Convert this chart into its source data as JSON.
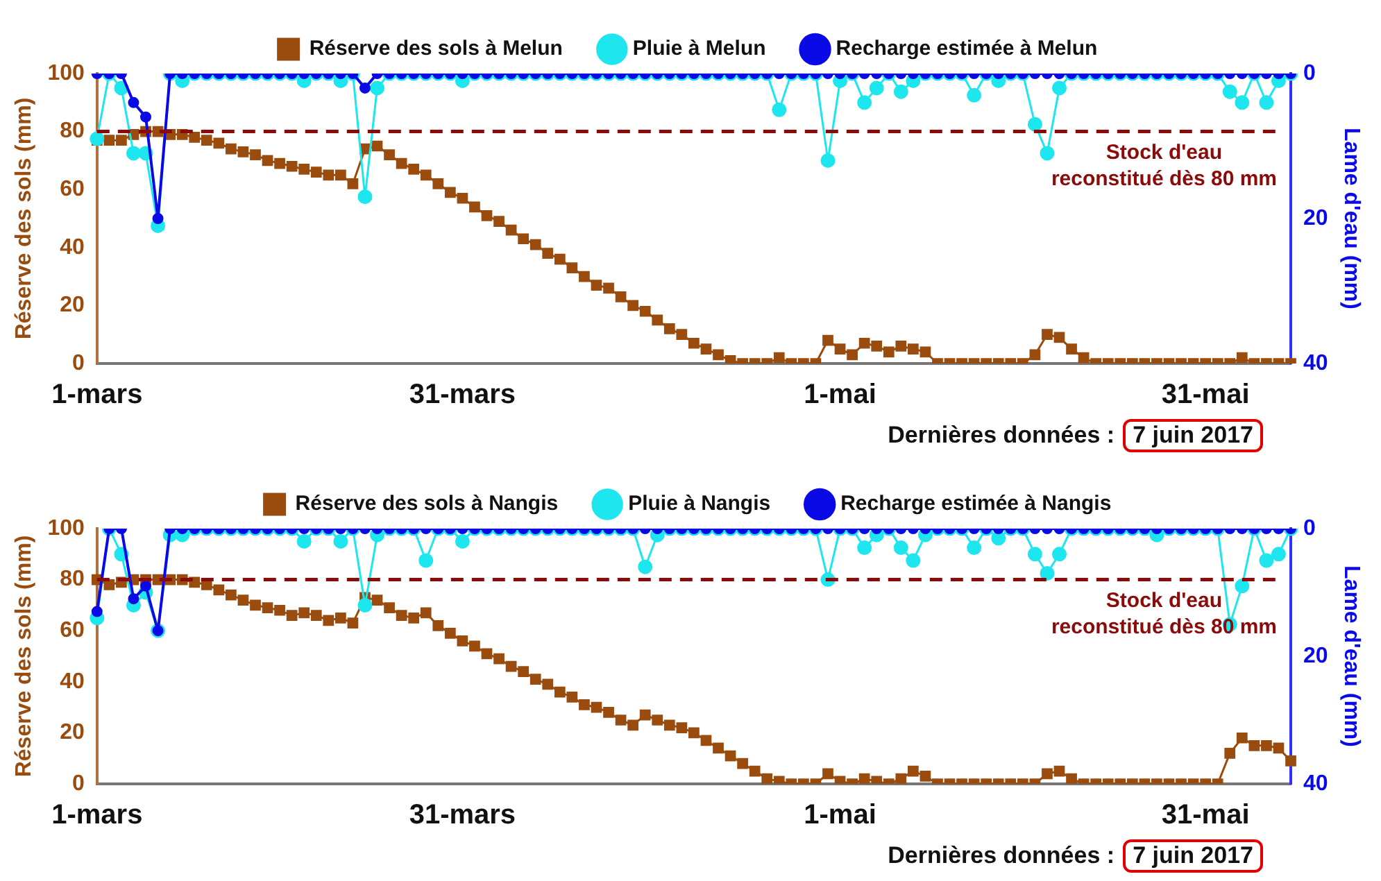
{
  "chart_data": [
    {
      "type": "line",
      "categories": [
        "1-mars",
        null,
        null,
        null,
        null,
        null,
        null,
        null,
        null,
        null,
        null,
        null,
        null,
        null,
        null,
        null,
        null,
        null,
        null,
        null,
        null,
        null,
        null,
        null,
        null,
        null,
        null,
        null,
        null,
        null,
        "31-mars",
        null,
        null,
        null,
        null,
        null,
        null,
        null,
        null,
        null,
        null,
        null,
        null,
        null,
        null,
        null,
        null,
        null,
        null,
        null,
        null,
        null,
        null,
        null,
        null,
        null,
        null,
        null,
        null,
        null,
        null,
        "1-mai",
        null,
        null,
        null,
        null,
        null,
        null,
        null,
        null,
        null,
        null,
        null,
        null,
        null,
        null,
        null,
        null,
        null,
        null,
        null,
        null,
        null,
        null,
        null,
        null,
        null,
        null,
        null,
        null,
        null,
        "31-mai",
        null,
        null,
        null,
        null,
        null,
        null,
        null
      ],
      "ylabel": "Réserve des sols (mm)",
      "y2label": "Lame d'eau (mm)",
      "ylim": [
        0,
        100
      ],
      "yticks": [
        0,
        20,
        40,
        60,
        80,
        100
      ],
      "y2lim": [
        40,
        0
      ],
      "y2ticks": [
        0,
        20,
        40
      ],
      "legend": "top",
      "grid": false,
      "series": [
        {
          "name": "Réserve des sols à Melun",
          "color": "#9a4c0e",
          "marker": "square",
          "values": [
            77,
            77,
            77,
            79,
            80,
            80,
            79,
            79,
            78,
            77,
            76,
            74,
            73,
            72,
            70,
            69,
            68,
            67,
            66,
            65,
            65,
            62,
            74,
            75,
            72,
            69,
            67,
            65,
            62,
            59,
            57,
            54,
            51,
            49,
            46,
            43,
            41,
            38,
            36,
            33,
            30,
            27,
            26,
            23,
            20,
            18,
            15,
            12,
            10,
            7,
            5,
            3,
            1,
            0,
            0,
            0,
            2,
            0,
            0,
            0,
            8,
            5,
            3,
            7,
            6,
            4,
            6,
            5,
            4,
            0,
            0,
            0,
            0,
            0,
            0,
            0,
            0,
            3,
            10,
            9,
            5,
            2,
            0,
            0,
            0,
            0,
            0,
            0,
            0,
            0,
            0,
            0,
            0,
            0,
            2,
            0,
            0,
            0,
            0
          ]
        },
        {
          "name": "Pluie à Melun",
          "color": "#1ee6ee",
          "marker": "circle",
          "axis": "y2",
          "values": [
            9,
            0,
            2,
            11,
            11,
            21,
            0,
            1,
            0,
            0,
            0,
            0,
            0,
            0,
            0,
            0,
            0,
            1,
            0,
            0,
            1,
            0,
            17,
            2,
            0,
            0,
            0,
            0,
            0,
            0,
            1,
            0,
            0,
            0,
            0,
            0,
            0,
            0,
            0,
            0,
            0,
            0,
            0,
            0,
            0,
            0,
            0,
            0,
            0,
            0,
            0,
            0,
            0,
            0,
            0,
            0,
            5,
            0,
            0,
            0,
            12,
            1,
            0,
            4,
            2,
            0,
            2.5,
            1,
            0,
            0,
            0,
            0,
            3,
            0,
            1,
            0,
            0,
            7,
            11,
            2,
            0,
            0,
            0,
            0,
            0,
            0,
            0,
            0,
            0,
            0,
            0,
            0,
            0,
            2.5,
            4,
            0,
            4,
            1,
            0
          ]
        },
        {
          "name": "Recharge estimée à Melun",
          "color": "#0a0ae6",
          "marker": "circle",
          "axis": "y2",
          "values": [
            0,
            0,
            0,
            4,
            6,
            20,
            0,
            0,
            0,
            0,
            0,
            0,
            0,
            0,
            0,
            0,
            0,
            0,
            0,
            0,
            0,
            0,
            2,
            0,
            0,
            0,
            0,
            0,
            0,
            0,
            0,
            0,
            0,
            0,
            0,
            0,
            0,
            0,
            0,
            0,
            0,
            0,
            0,
            0,
            0,
            0,
            0,
            0,
            0,
            0,
            0,
            0,
            0,
            0,
            0,
            0,
            0,
            0,
            0,
            0,
            0,
            0,
            0,
            0,
            0,
            0,
            0,
            0,
            0,
            0,
            0,
            0,
            0,
            0,
            0,
            0,
            0,
            0,
            0,
            0,
            0,
            0,
            0,
            0,
            0,
            0,
            0,
            0,
            0,
            0,
            0,
            0,
            0,
            0,
            0,
            0,
            0,
            0,
            0
          ]
        }
      ],
      "ref_lines": [
        {
          "axis": "y",
          "value": 80,
          "label": "Stock d'eau\nreconstitué dès 80 mm",
          "color": "#8b0a0a",
          "line_style": "dashed"
        }
      ],
      "annotations": [
        "Dernières données :",
        "7 juin 2017"
      ]
    },
    {
      "type": "line",
      "categories": [
        "1-mars",
        null,
        null,
        null,
        null,
        null,
        null,
        null,
        null,
        null,
        null,
        null,
        null,
        null,
        null,
        null,
        null,
        null,
        null,
        null,
        null,
        null,
        null,
        null,
        null,
        null,
        null,
        null,
        null,
        null,
        "31-mars",
        null,
        null,
        null,
        null,
        null,
        null,
        null,
        null,
        null,
        null,
        null,
        null,
        null,
        null,
        null,
        null,
        null,
        null,
        null,
        null,
        null,
        null,
        null,
        null,
        null,
        null,
        null,
        null,
        null,
        null,
        "1-mai",
        null,
        null,
        null,
        null,
        null,
        null,
        null,
        null,
        null,
        null,
        null,
        null,
        null,
        null,
        null,
        null,
        null,
        null,
        null,
        null,
        null,
        null,
        null,
        null,
        null,
        null,
        null,
        null,
        null,
        "31-mai",
        null,
        null,
        null,
        null,
        null,
        null,
        null
      ],
      "ylabel": "Réserve des sols (mm)",
      "y2label": "Lame d'eau (mm)",
      "ylim": [
        0,
        100
      ],
      "yticks": [
        0,
        20,
        40,
        60,
        80,
        100
      ],
      "y2lim": [
        40,
        0
      ],
      "y2ticks": [
        0,
        20,
        40
      ],
      "legend": "top",
      "grid": false,
      "series": [
        {
          "name": "Réserve des sols à Nangis",
          "color": "#9a4c0e",
          "marker": "square",
          "values": [
            80,
            78,
            79,
            80,
            80,
            80,
            80,
            80,
            79,
            78,
            76,
            74,
            72,
            70,
            69,
            68,
            66,
            67,
            66,
            64,
            65,
            63,
            73,
            72,
            69,
            66,
            65,
            67,
            62,
            59,
            56,
            54,
            51,
            49,
            46,
            44,
            41,
            39,
            36,
            34,
            31,
            30,
            28,
            25,
            23,
            27,
            25,
            23,
            22,
            20,
            17,
            14,
            11,
            8,
            5,
            2,
            1,
            0,
            0,
            0,
            4,
            1,
            0,
            2,
            1,
            0,
            2,
            5,
            3,
            0,
            0,
            0,
            0,
            0,
            0,
            0,
            0,
            0,
            4,
            5,
            2,
            0,
            0,
            0,
            0,
            0,
            0,
            0,
            0,
            0,
            0,
            0,
            0,
            12,
            18,
            15,
            15,
            14,
            9
          ]
        },
        {
          "name": "Pluie à Nangis",
          "color": "#1ee6ee",
          "marker": "circle",
          "axis": "y2",
          "values": [
            14,
            0,
            4,
            12,
            10,
            16,
            1,
            1,
            0,
            0,
            0,
            0,
            0,
            0,
            0,
            0,
            0,
            2,
            0,
            0,
            2,
            0,
            12,
            1,
            0,
            0,
            0,
            5,
            0,
            0,
            2,
            0,
            0,
            0,
            0,
            0,
            0,
            0,
            0,
            0,
            0,
            0,
            0,
            0,
            0,
            6,
            1,
            0,
            0,
            0,
            0,
            0,
            0,
            0,
            0,
            0,
            0,
            0,
            0,
            0,
            8,
            0,
            0,
            3,
            1,
            0,
            3,
            5,
            1,
            0,
            0,
            0,
            3,
            0,
            1.5,
            0,
            0,
            4,
            7,
            4,
            0,
            0,
            0,
            0,
            0,
            0,
            0,
            1,
            0,
            0,
            0,
            0,
            0,
            15,
            9,
            0,
            5,
            4,
            0
          ]
        },
        {
          "name": "Recharge estimée à Nangis",
          "color": "#0a0ae6",
          "marker": "circle",
          "axis": "y2",
          "values": [
            13,
            0,
            0,
            11,
            9,
            16,
            0,
            0,
            0,
            0,
            0,
            0,
            0,
            0,
            0,
            0,
            0,
            0,
            0,
            0,
            0,
            0,
            0,
            0,
            0,
            0,
            0,
            0,
            0,
            0,
            0,
            0,
            0,
            0,
            0,
            0,
            0,
            0,
            0,
            0,
            0,
            0,
            0,
            0,
            0,
            0,
            0,
            0,
            0,
            0,
            0,
            0,
            0,
            0,
            0,
            0,
            0,
            0,
            0,
            0,
            0,
            0,
            0,
            0,
            0,
            0,
            0,
            0,
            0,
            0,
            0,
            0,
            0,
            0,
            0,
            0,
            0,
            0,
            0,
            0,
            0,
            0,
            0,
            0,
            0,
            0,
            0,
            0,
            0,
            0,
            0,
            0,
            0,
            0,
            0,
            0,
            0,
            0,
            0
          ]
        }
      ],
      "ref_lines": [
        {
          "axis": "y",
          "value": 80,
          "label": "Stock d'eau\nreconstitué dès 80 mm",
          "color": "#8b0a0a",
          "line_style": "dashed"
        }
      ],
      "annotations": [
        "Dernières données :",
        "7 juin 2017"
      ]
    }
  ]
}
